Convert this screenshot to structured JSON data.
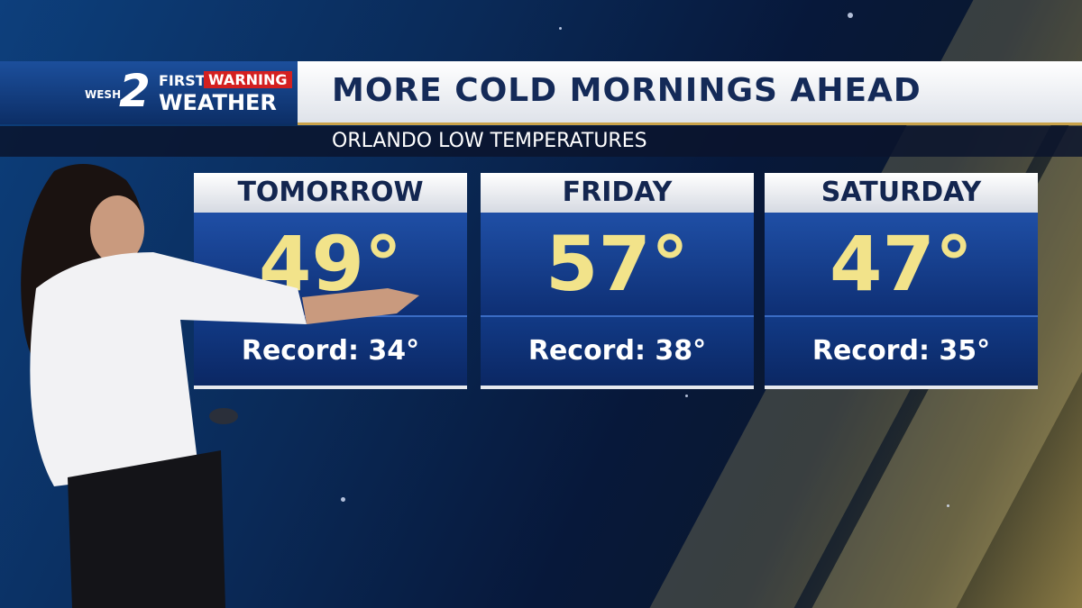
{
  "header": {
    "logo": {
      "station": "WESH",
      "channel": "2",
      "first": "FIRST",
      "warning": "WARNING",
      "weather": "WEATHER"
    },
    "title": "MORE COLD MORNINGS AHEAD",
    "subtitle": "ORLANDO LOW TEMPERATURES"
  },
  "cards": [
    {
      "day": "TOMORROW",
      "low": "49°",
      "record": "Record: 34°"
    },
    {
      "day": "FRIDAY",
      "low": "57°",
      "record": "Record: 38°"
    },
    {
      "day": "SATURDAY",
      "low": "47°",
      "record": "Record: 35°"
    }
  ]
}
